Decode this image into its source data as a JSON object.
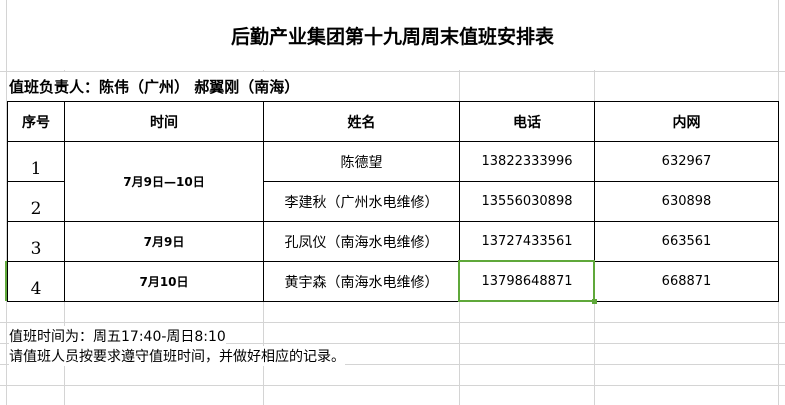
{
  "title": "后勤产业集团第十九周周末值班安排表",
  "manager_line": "值班负责人：陈伟（广州） 郝翼刚（南海）",
  "headers": {
    "index": "序号",
    "time": "时间",
    "name": "姓名",
    "phone": "电话",
    "intranet": "内网"
  },
  "rows": [
    {
      "index": "1",
      "name": "陈德望",
      "phone": "13822333996",
      "intranet": "632967"
    },
    {
      "index": "2",
      "name": "李建秋（广州水电维修）",
      "phone": "13556030898",
      "intranet": "630898"
    },
    {
      "index": "3",
      "name": "孔凤仪（南海水电维修）",
      "phone": "13727433561",
      "intranet": "663561"
    },
    {
      "index": "4",
      "name": "黄宇森（南海水电维修）",
      "phone": "13798648871",
      "intranet": "668871"
    }
  ],
  "times": [
    "7月9日—10日",
    "7月9日",
    "7月10日"
  ],
  "notes": [
    "值班时间为：周五17:40-周日8:10",
    "请值班人员按要求遵守值班时间，并做好相应的记录。"
  ],
  "selection_color": "#5fa83a"
}
